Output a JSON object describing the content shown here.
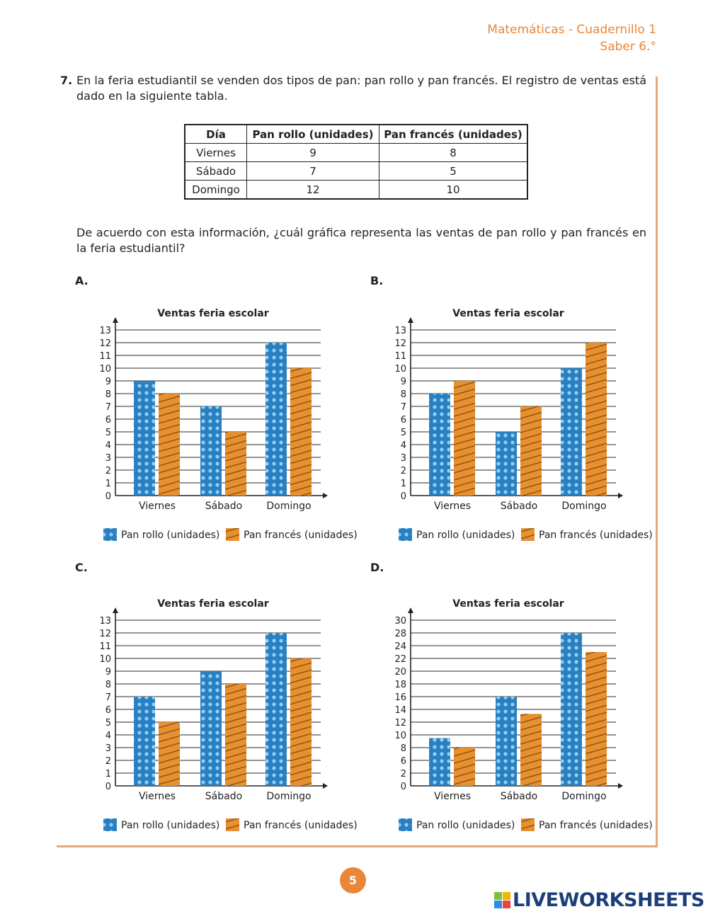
{
  "header": {
    "line1": "Matemáticas - Cuadernillo 1",
    "line2": "Saber 6.°"
  },
  "question": {
    "number": "7.",
    "text": "En la feria estudiantil se venden dos tipos de pan: pan rollo y pan francés. El registro de ventas está dado en la siguiente tabla.",
    "prompt": "De acuerdo con esta información, ¿cuál gráfica representa las ventas de pan rollo y pan francés en la feria estudiantil?"
  },
  "table": {
    "headers": [
      "Día",
      "Pan rollo (unidades)",
      "Pan francés (unidades)"
    ],
    "rows": [
      [
        "Viernes",
        "9",
        "8"
      ],
      [
        "Sábado",
        "7",
        "5"
      ],
      [
        "Domingo",
        "12",
        "10"
      ]
    ]
  },
  "colors": {
    "accent": "#e8873a",
    "rollo": "#2a7fc1",
    "frances": "#e8902e"
  },
  "chart_data": [
    {
      "option": "A.",
      "type": "bar",
      "title": "Ventas feria escolar",
      "categories": [
        "Viernes",
        "Sábado",
        "Domingo"
      ],
      "yticks": [
        "0",
        "1",
        "2",
        "3",
        "4",
        "5",
        "6",
        "7",
        "8",
        "9",
        "10",
        "11",
        "12",
        "13"
      ],
      "series": [
        {
          "name": "Pan rollo (unidades)",
          "pattern": "dots",
          "values": [
            9,
            7,
            12
          ]
        },
        {
          "name": "Pan francés (unidades)",
          "pattern": "stripes",
          "values": [
            8,
            5,
            10
          ]
        }
      ],
      "grid": true,
      "legend": "bottom"
    },
    {
      "option": "B.",
      "type": "bar",
      "title": "Ventas feria escolar",
      "categories": [
        "Viernes",
        "Sábado",
        "Domingo"
      ],
      "yticks": [
        "0",
        "1",
        "2",
        "3",
        "4",
        "5",
        "6",
        "7",
        "8",
        "9",
        "10",
        "11",
        "12",
        "13"
      ],
      "series": [
        {
          "name": "Pan rollo (unidades)",
          "pattern": "dots",
          "values": [
            8,
            5,
            10
          ]
        },
        {
          "name": "Pan francés (unidades)",
          "pattern": "stripes",
          "values": [
            9,
            7,
            12
          ]
        }
      ],
      "grid": true,
      "legend": "bottom"
    },
    {
      "option": "C.",
      "type": "bar",
      "title": "Ventas feria escolar",
      "categories": [
        "Viernes",
        "Sábado",
        "Domingo"
      ],
      "yticks": [
        "0",
        "1",
        "2",
        "3",
        "4",
        "5",
        "6",
        "7",
        "8",
        "9",
        "10",
        "11",
        "12",
        "13"
      ],
      "series": [
        {
          "name": "Pan rollo (unidades)",
          "pattern": "dots",
          "values": [
            7,
            9,
            12
          ]
        },
        {
          "name": "Pan francés (unidades)",
          "pattern": "stripes",
          "values": [
            5,
            8,
            10
          ]
        }
      ],
      "grid": true,
      "legend": "bottom"
    },
    {
      "option": "D.",
      "type": "bar",
      "title": "Ventas feria escolar",
      "categories": [
        "Viernes",
        "Sábado",
        "Domingo"
      ],
      "yticks": [
        "0",
        "2",
        "6",
        "8",
        "10",
        "12",
        "14",
        "16",
        "18",
        "20",
        "22",
        "24",
        "28",
        "30"
      ],
      "series": [
        {
          "name": "Pan rollo (unidades)",
          "pattern": "dots",
          "values": [
            9.5,
            16,
            28
          ]
        },
        {
          "name": "Pan francés (unidades)",
          "pattern": "stripes",
          "values": [
            8,
            13.3,
            23
          ]
        }
      ],
      "grid": true,
      "legend": "bottom"
    }
  ],
  "footer": {
    "page_number": "5",
    "logo_text": "LIVEWORKSHEETS",
    "logo_tiles": [
      "L",
      "I",
      "V",
      "E"
    ]
  }
}
